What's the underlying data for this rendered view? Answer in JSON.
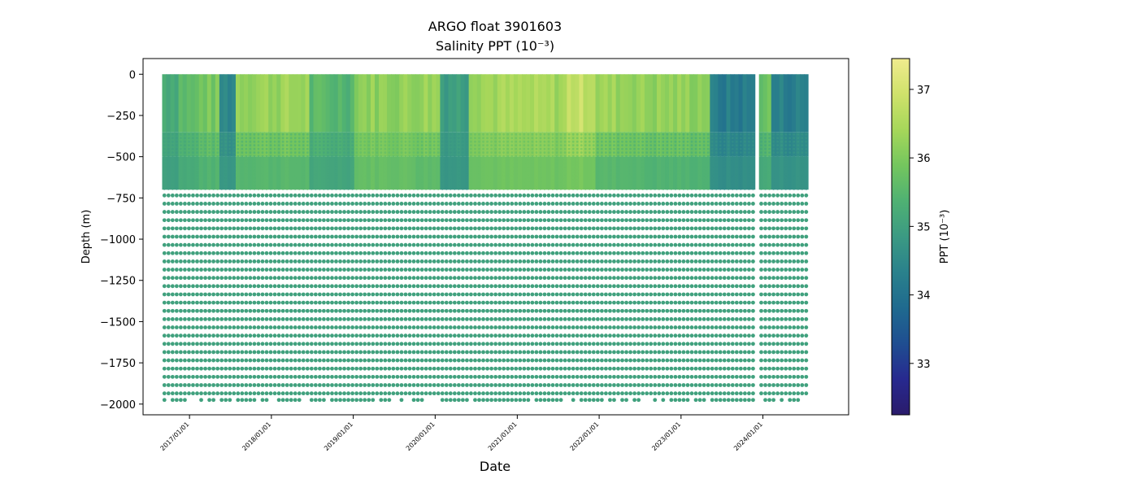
{
  "chart_data": {
    "type": "scatter",
    "title": "ARGO float 3901603",
    "subtitle": "Salinity PPT (10⁻³)",
    "xlabel": "Date",
    "ylabel": "Depth (m)",
    "x_axis_kind": "date",
    "xlim": [
      "2016-06-08",
      "2025-01-17"
    ],
    "ylim": [
      -2065,
      95
    ],
    "x_ticks": [
      "2017/01/01",
      "2018/01/01",
      "2019/01/01",
      "2020/01/01",
      "2021/01/01",
      "2022/01/01",
      "2023/01/01",
      "2024/01/01"
    ],
    "y_ticks": [
      0,
      -250,
      -500,
      -750,
      -1000,
      -1250,
      -1500,
      -1750,
      -2000
    ],
    "grid": false,
    "colorbar": {
      "label": "PPT (10⁻³)",
      "range": [
        32.25,
        37.45
      ],
      "ticks": [
        33,
        34,
        35,
        36,
        37
      ],
      "colormap": "haline",
      "stops": [
        "#2a1b6b",
        "#27298f",
        "#1f4e91",
        "#1f6a8f",
        "#2a818c",
        "#3b9a83",
        "#4fb173",
        "#74c65e",
        "#a6d75a",
        "#cfe26b",
        "#f0eb8e"
      ]
    },
    "profiles": {
      "first_date": "2016-09-01",
      "last_date": "2024-07-20",
      "gap": [
        "2023-11-25",
        "2023-12-14"
      ],
      "deep_depths": [
        -735,
        -785,
        -835,
        -885,
        -935,
        -985,
        -1035,
        -1085,
        -1135,
        -1185,
        -1235,
        -1285,
        -1335,
        -1385,
        -1435,
        -1485,
        -1535,
        -1585,
        -1635,
        -1685,
        -1735,
        -1785,
        -1835,
        -1885,
        -1935
      ],
      "bottom_depth": -1975,
      "deep_salinity": 35.0
    },
    "salinity_by_period": [
      {
        "from": "2016-09-01",
        "to": "2016-11-01",
        "surface": 35.3,
        "mid": 35.0
      },
      {
        "from": "2016-11-01",
        "to": "2017-02-01",
        "surface": 35.6,
        "mid": 35.2
      },
      {
        "from": "2017-02-01",
        "to": "2017-05-01",
        "surface": 35.9,
        "mid": 35.4
      },
      {
        "from": "2017-05-01",
        "to": "2017-07-20",
        "surface": 34.5,
        "mid": 34.8
      },
      {
        "from": "2017-07-20",
        "to": "2018-06-01",
        "surface": 36.3,
        "mid": 35.5
      },
      {
        "from": "2018-06-01",
        "to": "2019-01-01",
        "surface": 35.5,
        "mid": 35.1
      },
      {
        "from": "2019-01-01",
        "to": "2019-10-01",
        "surface": 36.2,
        "mid": 35.7
      },
      {
        "from": "2019-10-01",
        "to": "2020-01-10",
        "surface": 36.3,
        "mid": 35.6
      },
      {
        "from": "2020-01-10",
        "to": "2020-05-15",
        "surface": 35.0,
        "mid": 34.8
      },
      {
        "from": "2020-05-15",
        "to": "2021-08-01",
        "surface": 36.4,
        "mid": 35.8
      },
      {
        "from": "2021-08-01",
        "to": "2021-12-01",
        "surface": 36.8,
        "mid": 35.9
      },
      {
        "from": "2021-12-01",
        "to": "2022-07-01",
        "surface": 36.3,
        "mid": 35.5
      },
      {
        "from": "2022-07-01",
        "to": "2023-05-01",
        "surface": 36.2,
        "mid": 35.4
      },
      {
        "from": "2023-05-01",
        "to": "2023-11-25",
        "surface": 34.2,
        "mid": 34.6
      },
      {
        "from": "2023-12-14",
        "to": "2024-02-01",
        "surface": 35.8,
        "mid": 35.2
      },
      {
        "from": "2024-02-01",
        "to": "2024-07-20",
        "surface": 34.3,
        "mid": 34.7
      }
    ]
  }
}
